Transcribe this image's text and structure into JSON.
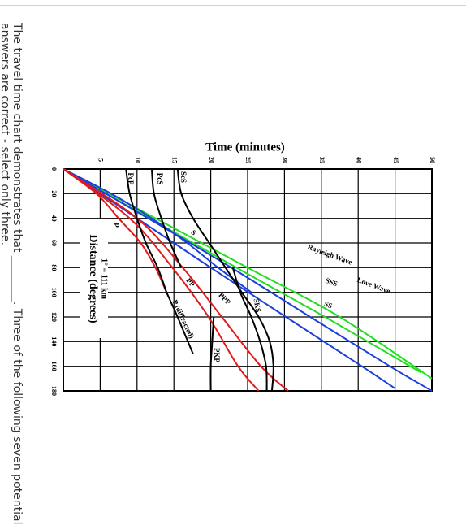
{
  "question": {
    "line1": "The travel time chart demonstrates that ________. Three of the following seven potential",
    "line2": "answers are correct - select only three."
  },
  "chart_data": {
    "type": "line",
    "title": "Time (minutes)",
    "xlabel": "Distance (degrees)",
    "xlabel_note": "1° = 111 km",
    "xlim": [
      0,
      180
    ],
    "ylim": [
      0,
      50
    ],
    "xticks": [
      "0",
      "20",
      "40",
      "60",
      "80",
      "100",
      "120",
      "140",
      "160",
      "180"
    ],
    "yticks": [
      "5",
      "10",
      "15",
      "20",
      "25",
      "30",
      "35",
      "40",
      "45",
      "50"
    ],
    "grid": true,
    "series": [
      {
        "name": "Rayleigh Wave",
        "color": "#22dd22",
        "x": [
          0,
          40,
          80,
          120,
          170
        ],
        "y": [
          0,
          12.5,
          25,
          37.5,
          50
        ]
      },
      {
        "name": "Love Wave",
        "color": "#22dd22",
        "x": [
          0,
          40,
          80,
          120,
          165
        ],
        "y": [
          0,
          11.7,
          23.5,
          35.5,
          48.5
        ]
      },
      {
        "name": "SSS",
        "color": "#1a3fdd",
        "x": [
          0,
          40,
          80,
          120,
          160,
          180
        ],
        "y": [
          0,
          11.5,
          22.8,
          33.5,
          44.3,
          50
        ]
      },
      {
        "name": "SS",
        "color": "#1a3fdd",
        "x": [
          0,
          40,
          80,
          120,
          160,
          178
        ],
        "y": [
          0,
          10,
          20,
          30.2,
          40.5,
          45
        ]
      },
      {
        "name": "S",
        "color": "#1a3fdd",
        "x": [
          0,
          20,
          40,
          60,
          80,
          100
        ],
        "y": [
          0,
          6.5,
          12,
          16.8,
          21,
          25.5
        ]
      },
      {
        "name": "P",
        "color": "#e31a1a",
        "x": [
          0,
          20,
          40,
          60,
          80,
          100
        ],
        "y": [
          0,
          4.5,
          7.5,
          10.5,
          12.5,
          14
        ]
      },
      {
        "name": "PP",
        "color": "#e31a1a",
        "x": [
          0,
          40,
          80,
          120,
          160,
          180
        ],
        "y": [
          0,
          9,
          14.8,
          19.7,
          23.7,
          26.5
        ]
      },
      {
        "name": "PPP",
        "color": "#e31a1a",
        "x": [
          0,
          40,
          80,
          120,
          160,
          180
        ],
        "y": [
          0,
          10,
          16.2,
          21.5,
          26.8,
          30.5
        ]
      },
      {
        "name": "PcP",
        "color": "#000000",
        "x": [
          0,
          20,
          40,
          60,
          80,
          100
        ],
        "y": [
          8.5,
          9,
          10,
          11.2,
          12.8,
          14
        ]
      },
      {
        "name": "PcS",
        "color": "#000000",
        "x": [
          0,
          20,
          40,
          60,
          80
        ],
        "y": [
          12,
          12.3,
          13.3,
          14.5,
          16
        ]
      },
      {
        "name": "ScS",
        "color": "#000000",
        "x": [
          0,
          20,
          40,
          60,
          80,
          100,
          120,
          140,
          160,
          180
        ],
        "y": [
          15.5,
          16,
          17.6,
          19.8,
          22,
          24.2,
          26.5,
          28,
          28.5,
          28.3
        ]
      },
      {
        "name": "SKS",
        "color": "#000000",
        "x": [
          80,
          100,
          120,
          140,
          160,
          180
        ],
        "y": [
          23,
          24,
          25.5,
          26.7,
          27.5,
          27.6
        ]
      },
      {
        "name": "P (diffracted)",
        "color": "#000000",
        "x": [
          100,
          120,
          150
        ],
        "y": [
          14,
          15.5,
          17.6
        ]
      },
      {
        "name": "PKP",
        "color": "#000000",
        "x": [
          120,
          140,
          160,
          180
        ],
        "y": [
          20.4,
          20.2,
          20,
          20
        ]
      }
    ]
  }
}
